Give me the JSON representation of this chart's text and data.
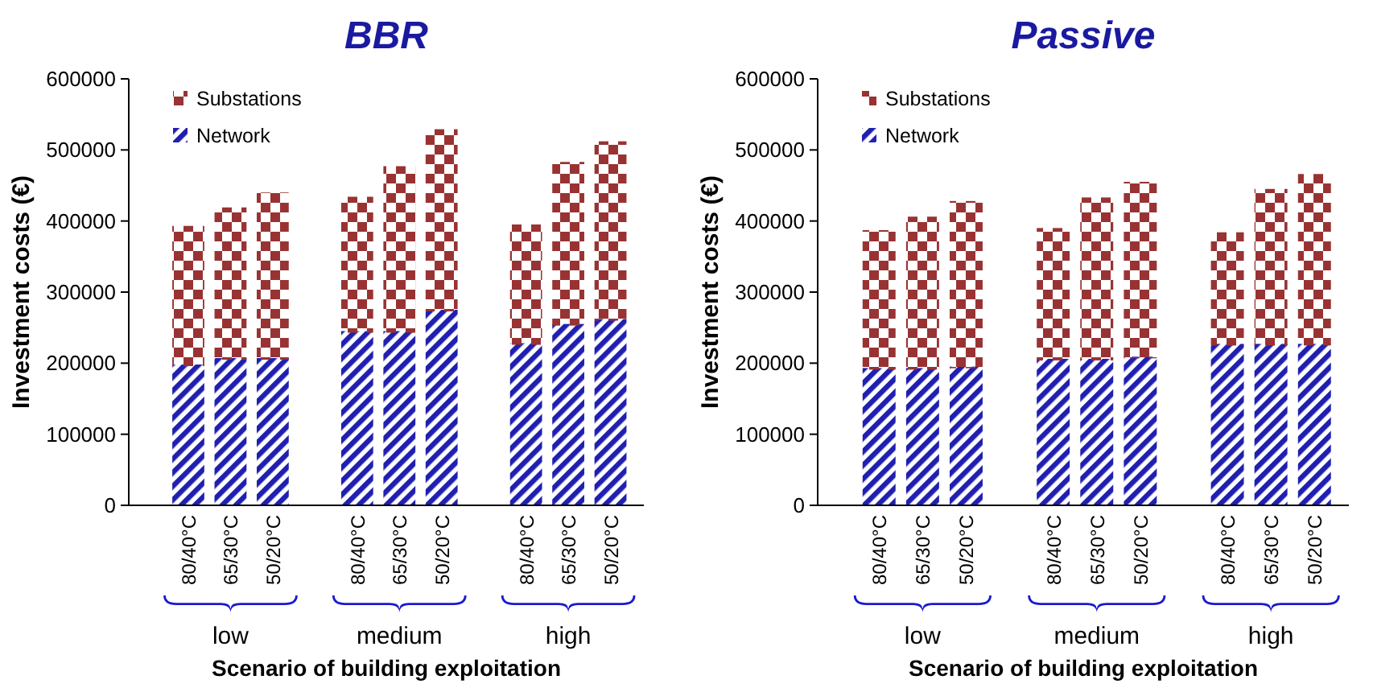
{
  "chart_data": [
    {
      "type": "bar",
      "stacked": true,
      "title": "BBR",
      "xlabel": "Scenario of building exploitation",
      "ylabel": "Investment costs (€)",
      "categories": [
        "80/40°C",
        "65/30°C",
        "50/20°C",
        "80/40°C",
        "65/30°C",
        "50/20°C",
        "80/40°C",
        "65/30°C",
        "50/20°C"
      ],
      "series": [
        {
          "name": "Network",
          "color": "#2020b0",
          "values": [
            197000,
            206000,
            206000,
            244000,
            244000,
            274000,
            227000,
            254000,
            261000
          ]
        },
        {
          "name": "Substations",
          "color": "#993333",
          "values": [
            195000,
            212000,
            233000,
            189000,
            232000,
            254000,
            167000,
            228000,
            250000
          ]
        }
      ],
      "ylim": [
        0,
        600000
      ],
      "yticks": [
        0,
        100000,
        200000,
        300000,
        400000,
        500000,
        600000
      ],
      "legend": "top left",
      "annotations": [
        "low",
        "medium",
        "high"
      ]
    },
    {
      "type": "bar",
      "stacked": true,
      "title": "Passive",
      "xlabel": "Scenario of building exploitation",
      "ylabel": "Investment costs (€)",
      "categories": [
        "80/40°C",
        "65/30°C",
        "50/20°C",
        "80/40°C",
        "65/30°C",
        "50/20°C",
        "80/40°C",
        "65/30°C",
        "50/20°C"
      ],
      "series": [
        {
          "name": "Network",
          "color": "#2020b0",
          "values": [
            192000,
            192000,
            194000,
            205000,
            205000,
            208000,
            226000,
            226000,
            226000
          ]
        },
        {
          "name": "Substations",
          "color": "#993333",
          "values": [
            194000,
            213000,
            233000,
            184000,
            227000,
            246000,
            157000,
            218000,
            239000
          ]
        }
      ],
      "ylim": [
        0,
        600000
      ],
      "yticks": [
        0,
        100000,
        200000,
        300000,
        400000,
        500000,
        600000
      ],
      "legend": "top left",
      "annotations": [
        "low",
        "medium",
        "high"
      ]
    }
  ]
}
